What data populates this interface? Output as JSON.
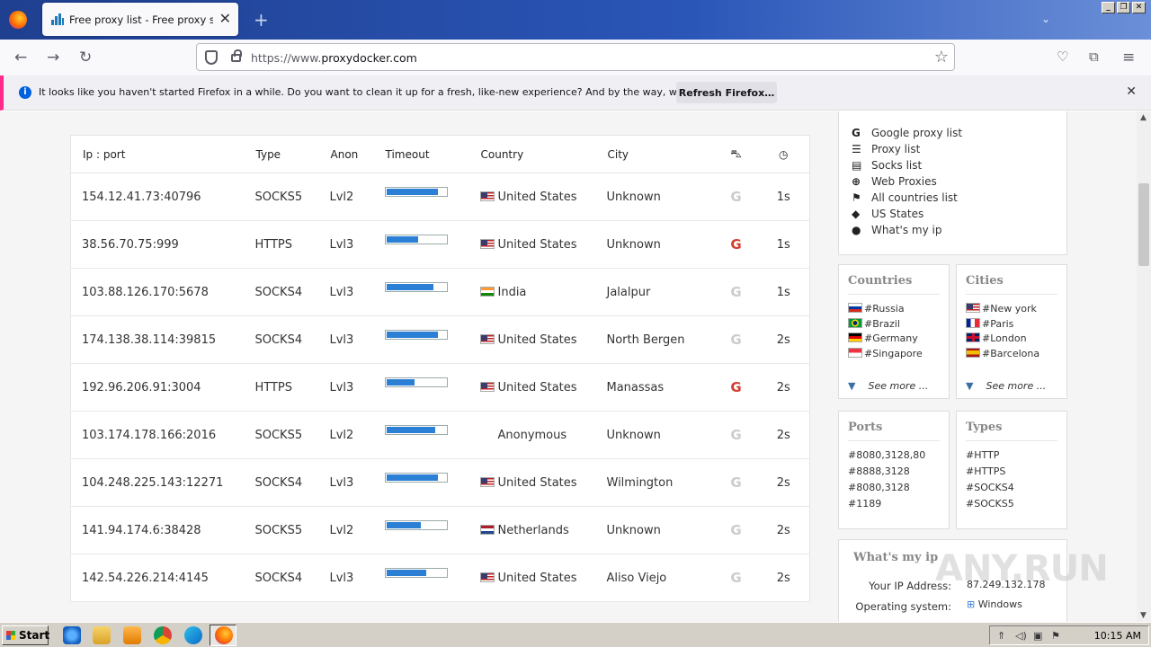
{
  "browser": {
    "tab_title": "Free proxy list - Free proxy server",
    "new_tab_label": "+",
    "url_host": "https://www.",
    "url_domain": "proxydocker.com",
    "minimize": "_",
    "restore": "❐",
    "close": "✕"
  },
  "notification": {
    "message": "It looks like you haven't started Firefox in a while. Do you want to clean it up for a fresh, like-new experience? And by the way, welcome back!",
    "button": "Refresh Firefox…"
  },
  "table": {
    "headers": [
      "Ip : port",
      "Type",
      "Anon",
      "Timeout",
      "Country",
      "City"
    ],
    "rows": [
      {
        "ip": "154.12.41.73:40796",
        "type": "SOCKS5",
        "anon": "Lvl2",
        "timeout": 0.84,
        "flag": "us",
        "country": "United States",
        "city": "Unknown",
        "google": false,
        "time": "1s"
      },
      {
        "ip": "38.56.70.75:999",
        "type": "HTTPS",
        "anon": "Lvl3",
        "timeout": 0.52,
        "flag": "us",
        "country": "United States",
        "city": "Unknown",
        "google": true,
        "time": "1s"
      },
      {
        "ip": "103.88.126.170:5678",
        "type": "SOCKS4",
        "anon": "Lvl3",
        "timeout": 0.77,
        "flag": "in",
        "country": "India",
        "city": "Jalalpur",
        "google": false,
        "time": "1s"
      },
      {
        "ip": "174.138.38.114:39815",
        "type": "SOCKS4",
        "anon": "Lvl3",
        "timeout": 0.84,
        "flag": "us",
        "country": "United States",
        "city": "North Bergen",
        "google": false,
        "time": "2s"
      },
      {
        "ip": "192.96.206.91:3004",
        "type": "HTTPS",
        "anon": "Lvl3",
        "timeout": 0.47,
        "flag": "us",
        "country": "United States",
        "city": "Manassas",
        "google": true,
        "time": "2s"
      },
      {
        "ip": "103.174.178.166:2016",
        "type": "SOCKS5",
        "anon": "Lvl2",
        "timeout": 0.8,
        "flag": "",
        "country": "Anonymous",
        "city": "Unknown",
        "google": false,
        "time": "2s"
      },
      {
        "ip": "104.248.225.143:12271",
        "type": "SOCKS4",
        "anon": "Lvl3",
        "timeout": 0.84,
        "flag": "us",
        "country": "United States",
        "city": "Wilmington",
        "google": false,
        "time": "2s"
      },
      {
        "ip": "141.94.174.6:38428",
        "type": "SOCKS5",
        "anon": "Lvl2",
        "timeout": 0.57,
        "flag": "nl",
        "country": "Netherlands",
        "city": "Unknown",
        "google": false,
        "time": "2s"
      },
      {
        "ip": "142.54.226.214:4145",
        "type": "SOCKS4",
        "anon": "Lvl3",
        "timeout": 0.65,
        "flag": "us",
        "country": "United States",
        "city": "Aliso Viejo",
        "google": false,
        "time": "2s"
      }
    ]
  },
  "sidebar": {
    "links": [
      {
        "icon": "G",
        "label": "Google proxy list"
      },
      {
        "icon": "☰",
        "label": "Proxy list"
      },
      {
        "icon": "▤",
        "label": "Socks list"
      },
      {
        "icon": "⊕",
        "label": "Web Proxies"
      },
      {
        "icon": "⚑",
        "label": "All countries list"
      },
      {
        "icon": "◆",
        "label": "US States"
      },
      {
        "icon": "●",
        "label": "What's my ip"
      }
    ],
    "countries": {
      "title": "Countries",
      "items": [
        {
          "flag": "ru",
          "label": "#Russia"
        },
        {
          "flag": "br",
          "label": "#Brazil"
        },
        {
          "flag": "de",
          "label": "#Germany"
        },
        {
          "flag": "sg",
          "label": "#Singapore"
        }
      ],
      "more": "See more ..."
    },
    "cities": {
      "title": "Cities",
      "items": [
        {
          "flag": "us",
          "label": "#New york"
        },
        {
          "flag": "fr",
          "label": "#Paris"
        },
        {
          "flag": "gb",
          "label": "#London"
        },
        {
          "flag": "es",
          "label": "#Barcelona"
        }
      ],
      "more": "See more ..."
    },
    "ports": {
      "title": "Ports",
      "items": [
        "#8080,3128,80",
        "#8888,3128",
        "#8080,3128",
        "#1189"
      ]
    },
    "types": {
      "title": "Types",
      "items": [
        "#HTTP",
        "#HTTPS",
        "#SOCKS4",
        "#SOCKS5"
      ]
    },
    "whatip": {
      "title": "What's my ip",
      "ip_label": "Your IP Address:",
      "ip_value": "87.249.132.178",
      "os_label": "Operating system:",
      "os_value": "Windows"
    }
  },
  "watermark": "ANY.RUN",
  "taskbar": {
    "start": "Start",
    "clock": "10:15 AM"
  }
}
